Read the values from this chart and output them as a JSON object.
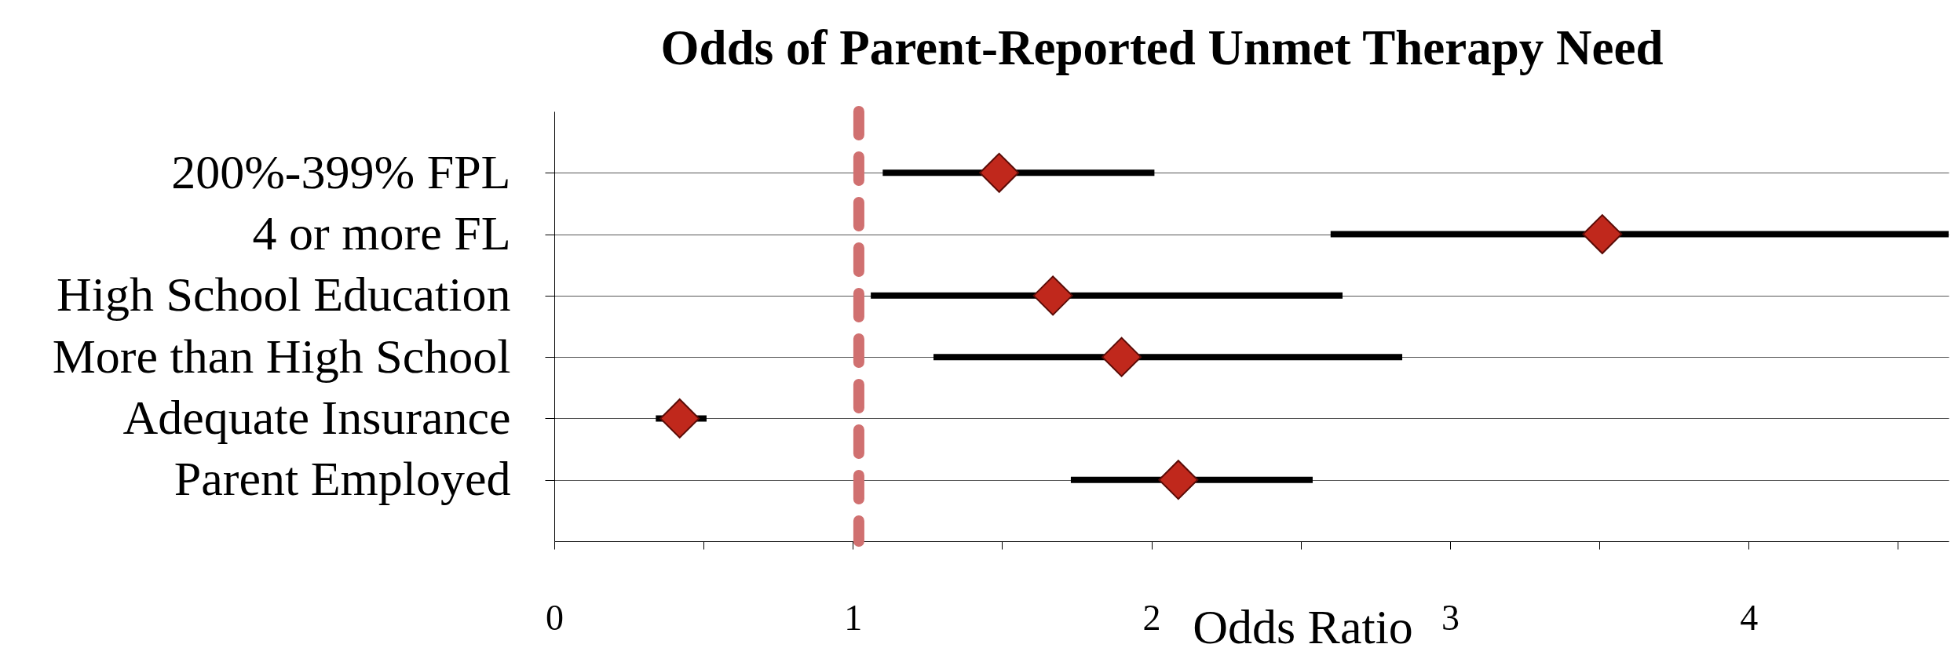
{
  "chart_data": {
    "type": "scatter",
    "orientation": "horizontal",
    "title": "Odds of Parent-Reported Unmet Therapy Need",
    "xlabel": "Odds Ratio",
    "categories": [
      "200%-399% FPL",
      "4 or more FL",
      "High School Education",
      "More than High School",
      "Adequate Insurance",
      "Parent Employed"
    ],
    "values": [
      1.49,
      3.51,
      1.67,
      1.9,
      0.42,
      2.09
    ],
    "errors": [
      [
        1.1,
        2.01
      ],
      [
        2.6,
        4.67
      ],
      [
        1.06,
        2.64
      ],
      [
        1.27,
        2.84
      ],
      [
        0.34,
        0.51
      ],
      [
        1.73,
        2.54
      ]
    ],
    "color": "#c0281c",
    "marker": "diamond",
    "xlim": [
      0,
      4.67
    ],
    "xticks": [
      0,
      {
        "value": 0.5,
        "label": null
      },
      1,
      {
        "value": 1.5,
        "label": null
      },
      2,
      {
        "value": 2.5,
        "label": null
      },
      3,
      {
        "value": 3.5,
        "label": null
      },
      4,
      {
        "value": 4.5,
        "label": null
      }
    ],
    "grid": "y",
    "ref_lines": [
      {
        "axis": "x",
        "value": 1.02,
        "color": "#d07070",
        "line_style": "dashed"
      }
    ]
  }
}
